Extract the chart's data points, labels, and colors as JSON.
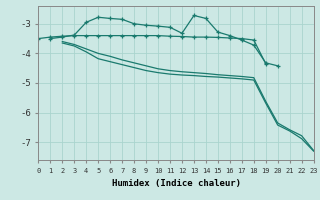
{
  "xlabel": "Humidex (Indice chaleur)",
  "bg_color": "#cce8e4",
  "grid_color": "#aad4ce",
  "line_color": "#1a7a6e",
  "xlim": [
    0,
    23
  ],
  "ylim": [
    -7.6,
    -2.4
  ],
  "yticks": [
    -7,
    -6,
    -5,
    -4,
    -3
  ],
  "xticks": [
    0,
    1,
    2,
    3,
    4,
    5,
    6,
    7,
    8,
    9,
    10,
    11,
    12,
    13,
    14,
    15,
    16,
    17,
    18,
    19,
    20,
    21,
    22,
    23
  ],
  "series": [
    {
      "x": [
        0,
        1,
        2,
        3,
        4,
        5,
        6,
        7,
        8,
        9,
        10,
        11,
        12,
        13,
        14,
        15,
        16,
        17,
        18,
        19
      ],
      "y": [
        -3.5,
        -3.45,
        -3.42,
        -3.4,
        -3.4,
        -3.4,
        -3.4,
        -3.4,
        -3.4,
        -3.4,
        -3.4,
        -3.42,
        -3.43,
        -3.45,
        -3.45,
        -3.46,
        -3.48,
        -3.5,
        -3.55,
        -4.35
      ],
      "marker": true
    },
    {
      "x": [
        1,
        2,
        3,
        4,
        5,
        6,
        7,
        8,
        9,
        10,
        11,
        12,
        13,
        14,
        15,
        16,
        17,
        18,
        19,
        20
      ],
      "y": [
        -3.5,
        -3.45,
        -3.38,
        -2.95,
        -2.78,
        -2.82,
        -2.85,
        -3.0,
        -3.05,
        -3.08,
        -3.12,
        -3.32,
        -2.72,
        -2.82,
        -3.28,
        -3.4,
        -3.55,
        -3.72,
        -4.32,
        -4.42
      ],
      "marker": true
    },
    {
      "x": [
        2,
        3,
        4,
        5,
        6,
        7,
        8,
        9,
        10,
        11,
        12,
        13,
        14,
        15,
        16,
        17,
        18,
        19,
        20,
        21,
        22,
        23
      ],
      "y": [
        -3.6,
        -3.7,
        -3.85,
        -4.0,
        -4.1,
        -4.22,
        -4.32,
        -4.42,
        -4.52,
        -4.58,
        -4.62,
        -4.65,
        -4.68,
        -4.72,
        -4.75,
        -4.78,
        -4.82,
        -5.62,
        -6.35,
        -6.58,
        -6.78,
        -7.28
      ],
      "marker": false
    },
    {
      "x": [
        2,
        3,
        4,
        5,
        6,
        7,
        8,
        9,
        10,
        11,
        12,
        13,
        14,
        15,
        16,
        17,
        18,
        19,
        20,
        21,
        22,
        23
      ],
      "y": [
        -3.65,
        -3.75,
        -3.95,
        -4.18,
        -4.28,
        -4.38,
        -4.48,
        -4.58,
        -4.65,
        -4.7,
        -4.73,
        -4.75,
        -4.78,
        -4.8,
        -4.83,
        -4.86,
        -4.9,
        -5.68,
        -6.42,
        -6.62,
        -6.88,
        -7.3
      ],
      "marker": false
    }
  ]
}
